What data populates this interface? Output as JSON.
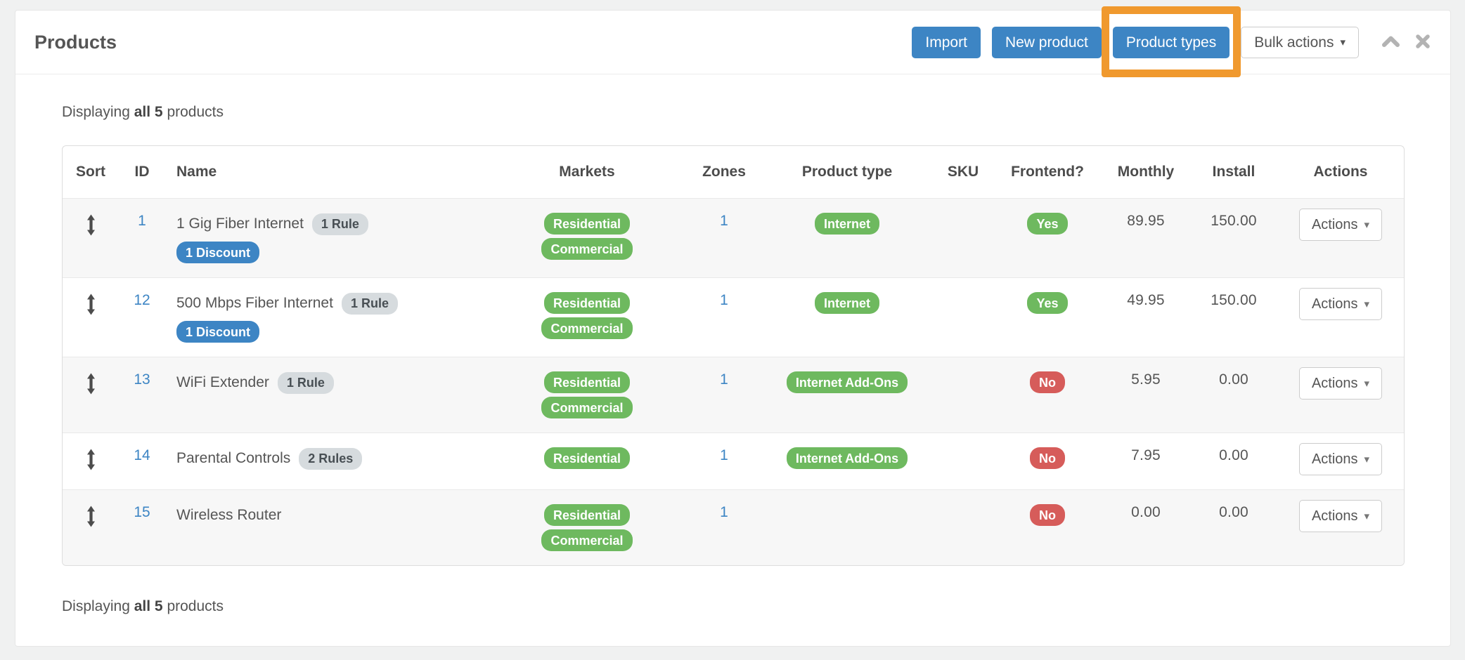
{
  "window": {
    "title": "Products"
  },
  "toolbar": {
    "import_label": "Import",
    "new_product_label": "New product",
    "product_types_label": "Product types",
    "bulk_actions_label": "Bulk actions"
  },
  "displaying": {
    "prefix": "Displaying",
    "bold": "all 5",
    "suffix": "products"
  },
  "icons": {
    "sort": "up-down-arrow",
    "collapse": "chevron-up",
    "close": "x-mark",
    "dropdown": "caret-down"
  },
  "colors": {
    "primary_blue": "#3d85c4",
    "success_green": "#6eb95f",
    "danger_red": "#d65c5a",
    "neutral_badge_gray": "#d6dbde",
    "annotation_orange": "#f0992e",
    "page_background": "#f0f1f1"
  },
  "table": {
    "headers": [
      "Sort",
      "ID",
      "Name",
      "Markets",
      "Zones",
      "Product type",
      "SKU",
      "Frontend?",
      "Monthly",
      "Install",
      "Actions"
    ],
    "row_actions_label": "Actions",
    "rows": [
      {
        "id": "1",
        "name": "1 Gig Fiber Internet",
        "rules": "1 Rule",
        "discounts": "1 Discount",
        "markets": [
          "Residential",
          "Commercial"
        ],
        "zones": "1",
        "product_type": "Internet",
        "sku": "",
        "frontend": "Yes",
        "monthly": "89.95",
        "install": "150.00"
      },
      {
        "id": "12",
        "name": "500 Mbps Fiber Internet",
        "rules": "1 Rule",
        "discounts": "1 Discount",
        "markets": [
          "Residential",
          "Commercial"
        ],
        "zones": "1",
        "product_type": "Internet",
        "sku": "",
        "frontend": "Yes",
        "monthly": "49.95",
        "install": "150.00"
      },
      {
        "id": "13",
        "name": "WiFi Extender",
        "rules": "1 Rule",
        "discounts": "",
        "markets": [
          "Residential",
          "Commercial"
        ],
        "zones": "1",
        "product_type": "Internet Add-Ons",
        "sku": "",
        "frontend": "No",
        "monthly": "5.95",
        "install": "0.00"
      },
      {
        "id": "14",
        "name": "Parental Controls",
        "rules": "2 Rules",
        "discounts": "",
        "markets": [
          "Residential"
        ],
        "zones": "1",
        "product_type": "Internet Add-Ons",
        "sku": "",
        "frontend": "No",
        "monthly": "7.95",
        "install": "0.00"
      },
      {
        "id": "15",
        "name": "Wireless Router",
        "rules": "",
        "discounts": "",
        "markets": [
          "Residential",
          "Commercial"
        ],
        "zones": "1",
        "product_type": "",
        "sku": "",
        "frontend": "No",
        "monthly": "0.00",
        "install": "0.00"
      }
    ]
  }
}
